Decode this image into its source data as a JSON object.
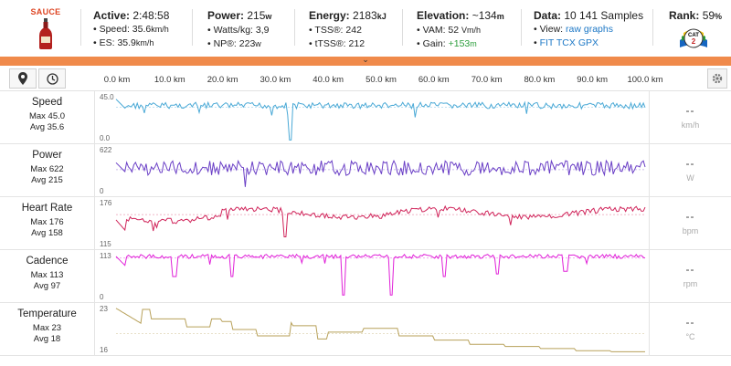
{
  "header": {
    "logo_text": "SAUCE",
    "active": {
      "label": "Active:",
      "value": "2:48:58",
      "speed_label": "• Speed:",
      "speed_value": "35.6",
      "speed_unit": "km/h",
      "es_label": "• ES:",
      "es_value": "35.9",
      "es_unit": "km/h"
    },
    "power": {
      "label": "Power:",
      "value": "215",
      "unit": "w",
      "wkg_label": "• Watts/kg:",
      "wkg_value": "3,9",
      "np_label": "• NP®:",
      "np_value": "223",
      "np_unit": "w"
    },
    "energy": {
      "label": "Energy:",
      "value": "2183",
      "unit": "kJ",
      "tss_label": "• TSS®:",
      "tss_value": "242",
      "ttss_label": "• tTSS®:",
      "ttss_value": "212"
    },
    "elevation": {
      "label": "Elevation:",
      "value": "~134",
      "unit": "m",
      "vam_label": "• VAM:",
      "vam_value": "52",
      "vam_unit": "Vm/h",
      "gain_label": "• Gain:",
      "gain_value": "+153",
      "gain_unit": "m"
    },
    "data": {
      "label": "Data:",
      "value": "10 141",
      "suffix": "Samples",
      "view_label": "• View:",
      "view_raw": "raw",
      "view_graphs": "graphs",
      "files": [
        "FIT",
        "TCX",
        "GPX"
      ]
    },
    "rank": {
      "label": "Rank:",
      "value": "59",
      "unit": "%",
      "badge_top": "CAT",
      "badge_num": "2"
    }
  },
  "toolbar": {
    "map_icon": "map-pin-icon",
    "time_icon": "clock-icon",
    "settings_icon": "gear-icon",
    "x_ticks": [
      "0.0 km",
      "10.0 km",
      "20.0 km",
      "30.0 km",
      "40.0 km",
      "50.0 km",
      "60.0 km",
      "70.0 km",
      "80.0 km",
      "90.0 km",
      "100.0 km"
    ]
  },
  "rows": [
    {
      "id": "speed",
      "name": "Speed",
      "max": "Max 45.0",
      "avg": "Avg 35.6",
      "ymax": "45.0",
      "ymin": "0.0",
      "current": "--",
      "unit": "km/h",
      "color": "#4aa9d6"
    },
    {
      "id": "power",
      "name": "Power",
      "max": "Max 622",
      "avg": "Avg 215",
      "ymax": "622",
      "ymin": "0",
      "current": "--",
      "unit": "W",
      "color": "#6a3fc6"
    },
    {
      "id": "heartrate",
      "name": "Heart Rate",
      "max": "Max 176",
      "avg": "Avg 158",
      "ymax": "176",
      "ymin": "115",
      "current": "--",
      "unit": "bpm",
      "color": "#d0245a"
    },
    {
      "id": "cadence",
      "name": "Cadence",
      "max": "Max 113",
      "avg": "Avg 97",
      "ymax": "113",
      "ymin": "0",
      "current": "--",
      "unit": "rpm",
      "color": "#e020d8"
    },
    {
      "id": "temperature",
      "name": "Temperature",
      "max": "Max 23",
      "avg": "Avg 18",
      "ymax": "23",
      "ymin": "16",
      "current": "--",
      "unit": "°C",
      "color": "#b8a15a"
    }
  ]
}
